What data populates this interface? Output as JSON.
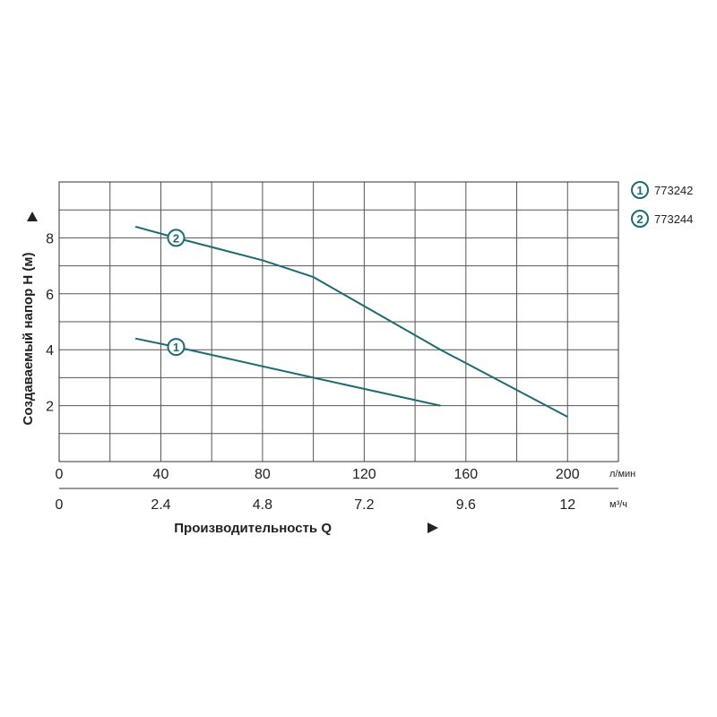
{
  "chart_data": {
    "type": "line",
    "x_unit_primary": "л/мин",
    "x_unit_secondary": "м³/ч",
    "xlim": [
      0,
      220
    ],
    "ylim": [
      0,
      10
    ],
    "grid": true,
    "x_ticks_primary": [
      "0",
      "40",
      "80",
      "120",
      "160",
      "200"
    ],
    "x_ticks_primary_values": [
      0,
      40,
      80,
      120,
      160,
      200
    ],
    "x_ticks_secondary": [
      "0",
      "2.4",
      "4.8",
      "7.2",
      "9.6",
      "12"
    ],
    "y_ticks": [
      "2",
      "4",
      "6",
      "8"
    ],
    "y_ticks_values": [
      2,
      4,
      6,
      8
    ],
    "xlabel": "Производительность Q",
    "ylabel": "Создаваемый напор H (м)",
    "series": [
      {
        "marker": "1",
        "name": "773242",
        "color": "#1f6b73",
        "x": [
          30,
          46,
          100,
          150
        ],
        "y": [
          4.4,
          4.1,
          3.0,
          2.0
        ]
      },
      {
        "marker": "2",
        "name": "773244",
        "color": "#1f6b73",
        "x": [
          30,
          46,
          80,
          100,
          150,
          200
        ],
        "y": [
          8.4,
          8.0,
          7.2,
          6.6,
          4.0,
          1.6
        ]
      }
    ],
    "legend_position": "right"
  }
}
